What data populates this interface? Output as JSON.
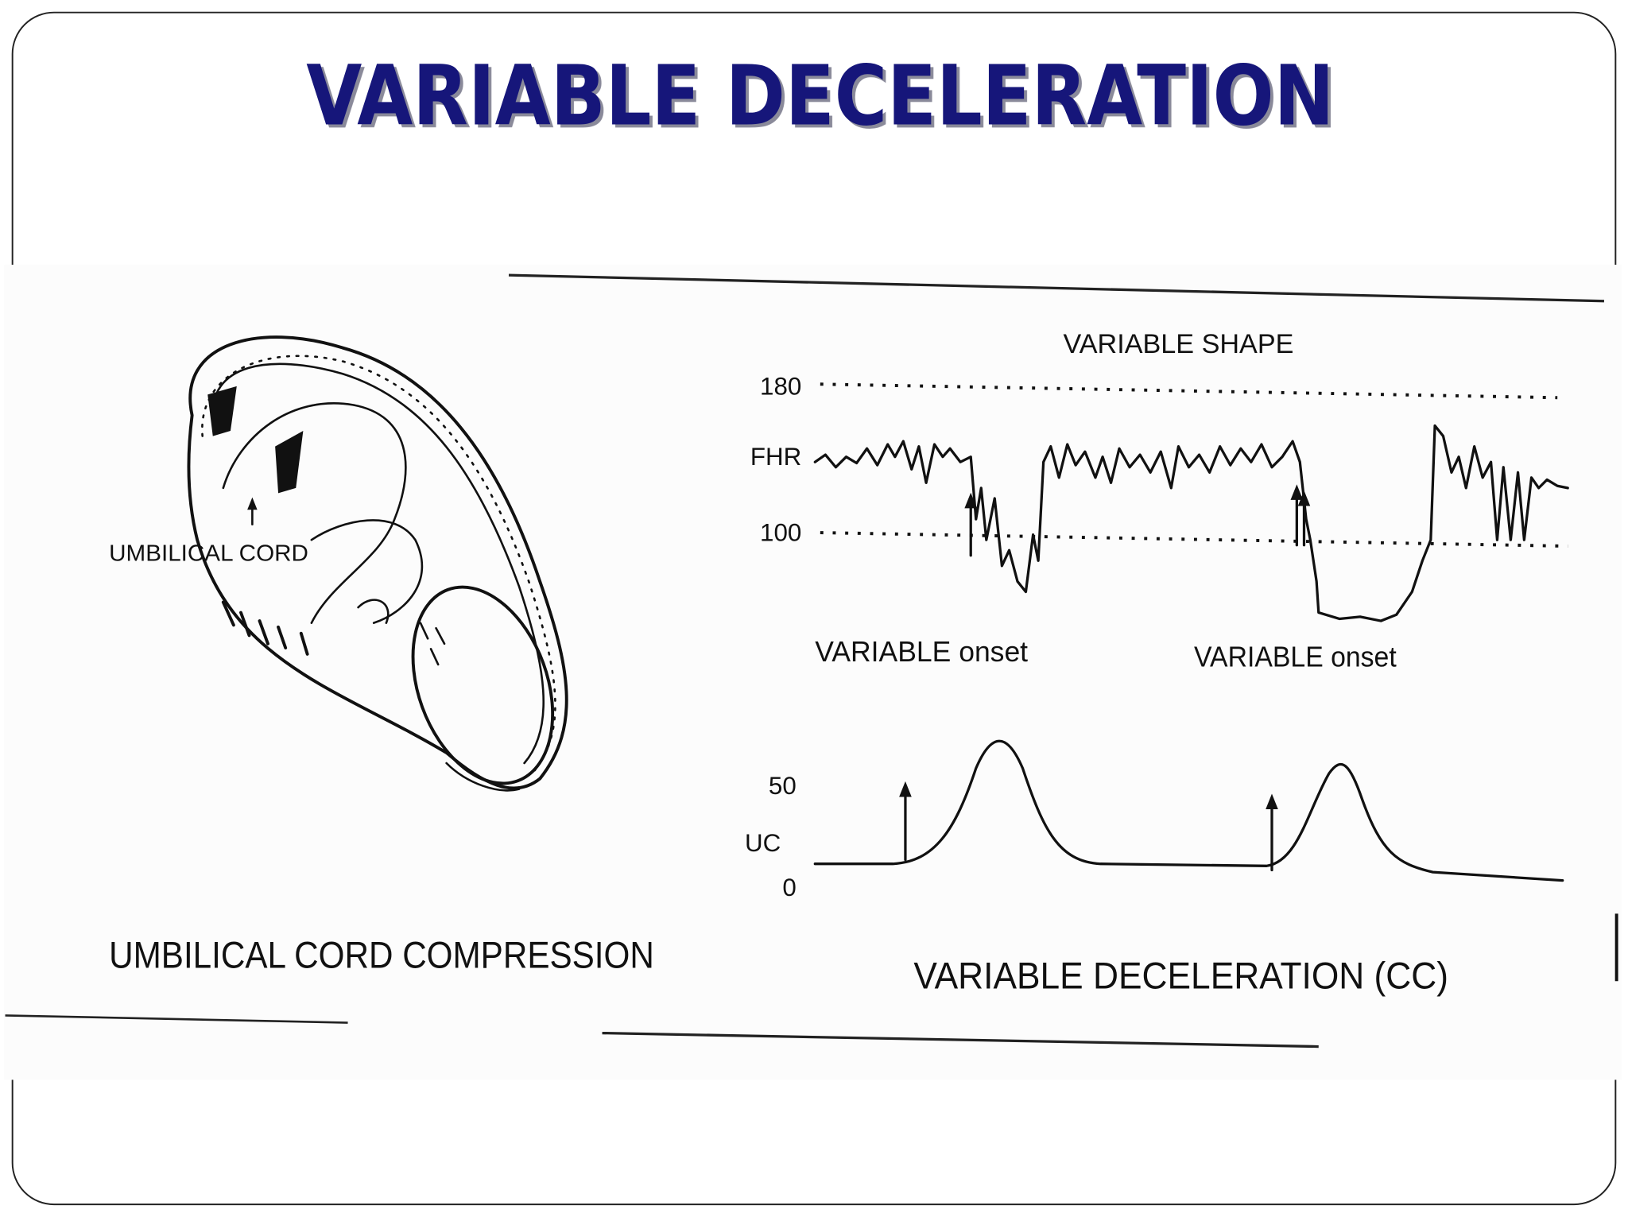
{
  "title": "VARIABLE DECELERATION",
  "diagram": {
    "cord_label": "UMBILICAL CORD",
    "left_caption": "UMBILICAL CORD COMPRESSION",
    "trace_title": "VARIABLE SHAPE",
    "fhr_axis": {
      "label": "FHR",
      "upper": "180",
      "lower": "100"
    },
    "onset_labels": [
      "VARIABLE onset",
      "VARIABLE onset"
    ],
    "uc_axis": {
      "label": "UC",
      "upper": "50",
      "lower": "0"
    },
    "right_caption": "VARIABLE DECELERATION (CC)"
  }
}
